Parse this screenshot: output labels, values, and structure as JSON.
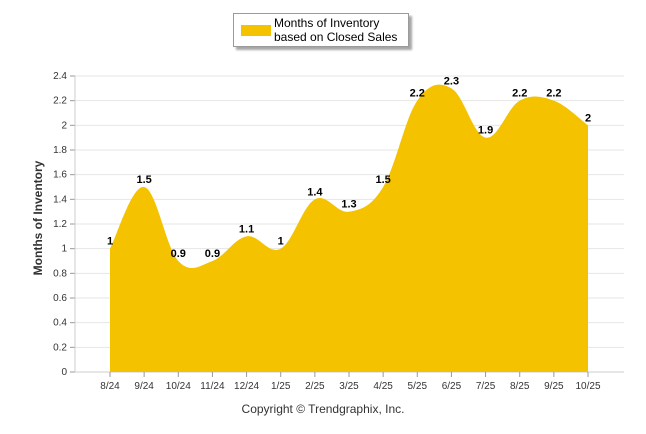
{
  "chart_data": {
    "type": "area",
    "title": "",
    "legend": {
      "label": "Months of Inventory based on Closed Sales",
      "position": "top-center"
    },
    "xlabel": "",
    "ylabel": "Months of Inventory",
    "categories": [
      "8/24",
      "9/24",
      "10/24",
      "11/24",
      "12/24",
      "1/25",
      "2/25",
      "3/25",
      "4/25",
      "5/25",
      "6/25",
      "7/25",
      "8/25",
      "9/25",
      "10/25"
    ],
    "series": [
      {
        "name": "Months of Inventory based on Closed Sales",
        "values": [
          1,
          1.5,
          0.9,
          0.9,
          1.1,
          1,
          1.4,
          1.3,
          1.5,
          2.2,
          2.3,
          1.9,
          2.2,
          2.2,
          2
        ]
      }
    ],
    "y_ticks": [
      "0",
      "0.2",
      "0.4",
      "0.6",
      "0.8",
      "1",
      "1.2",
      "1.4",
      "1.6",
      "1.8",
      "2",
      "2.2",
      "2.4"
    ],
    "ylim": [
      0,
      2.4
    ],
    "grid": true
  },
  "colors": {
    "fill": "#f5c200",
    "grid": "#e6e6e6",
    "axis": "#999999"
  },
  "footer": {
    "copyright": "Copyright © Trendgraphix, Inc."
  }
}
